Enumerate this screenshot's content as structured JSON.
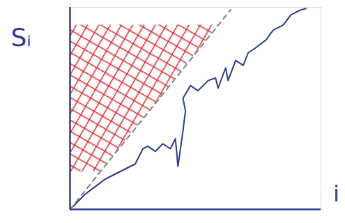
{
  "chart_data": {
    "type": "line",
    "x_label": "i",
    "y_label": "Sᵢ",
    "xlim": [
      0,
      10
    ],
    "ylim": [
      0,
      8
    ],
    "xticks": [],
    "yticks": [],
    "tick_labels": false,
    "grid": false,
    "series": [
      {
        "type": "line",
        "color": "#2b3a93",
        "line_style": "solid",
        "x": [
          0.1,
          0.6,
          1.0,
          1.4,
          1.8,
          2.2,
          2.6,
          2.9,
          3.1,
          3.4,
          3.7,
          4.0,
          4.2,
          4.3,
          4.5,
          4.6,
          4.5,
          4.8,
          5.1,
          5.5,
          5.8,
          5.9,
          6.2,
          6.3,
          6.6,
          6.9,
          7.1,
          7.4,
          7.8,
          8.1,
          8.5,
          8.8,
          9.2,
          9.4
        ],
        "values": [
          0.1,
          0.6,
          0.9,
          1.2,
          1.4,
          1.6,
          1.8,
          2.4,
          2.5,
          2.3,
          2.6,
          2.4,
          2.8,
          1.7,
          3.1,
          3.9,
          4.4,
          4.9,
          4.7,
          5.1,
          5.2,
          4.8,
          5.6,
          5.1,
          5.9,
          5.7,
          6.2,
          6.4,
          6.7,
          7.1,
          7.3,
          7.7,
          7.9,
          7.95
        ]
      },
      {
        "type": "line",
        "color": "#808080",
        "line_style": "dashed",
        "x": [
          0,
          6.4
        ],
        "values": [
          0,
          7.9
        ]
      }
    ],
    "region": {
      "color": "#e3262b",
      "x": [
        1.2,
        5.9
      ],
      "y": [
        1.5,
        7.3
      ]
    }
  }
}
